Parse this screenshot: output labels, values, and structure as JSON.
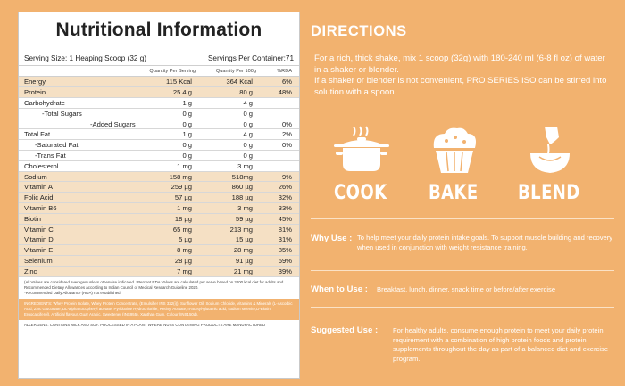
{
  "nutrition": {
    "title": "Nutritional Information",
    "serving_size": "Serving Size: 1 Heaping Scoop (32 g)",
    "servings_per_container": "Servings Per Container:71",
    "col_per_serving": "Quantity Per Serving",
    "col_per_100g": "Quantity Per 100g",
    "col_rda": "%RDA",
    "rows": [
      {
        "name": "Energy",
        "serving": "115 Kcal",
        "per100": "364 Kcal",
        "rda": "6%",
        "style": "shaded"
      },
      {
        "name": "Protein",
        "serving": "25.4 g",
        "per100": "80 g",
        "rda": "48%",
        "style": "shaded"
      },
      {
        "name": "Carbohydrate",
        "serving": "1 g",
        "per100": "4 g",
        "rda": "",
        "style": "plain"
      },
      {
        "name": "-Total Sugars",
        "serving": "0 g",
        "per100": "0 g",
        "rda": "",
        "style": "ind1"
      },
      {
        "name": "-Added Sugars",
        "serving": "0 g",
        "per100": "0 g",
        "rda": "0%",
        "style": "ind2"
      },
      {
        "name": "Total Fat",
        "serving": "1 g",
        "per100": "4 g",
        "rda": "2%",
        "style": "plain"
      },
      {
        "name": "-Saturated Fat",
        "serving": "0 g",
        "per100": "0 g",
        "rda": "0%",
        "style": "ind1b"
      },
      {
        "name": "-Trans Fat",
        "serving": "0 g",
        "per100": "0 g",
        "rda": "",
        "style": "ind1b"
      },
      {
        "name": "Cholesterol",
        "serving": "1 mg",
        "per100": "3 mg",
        "rda": "",
        "style": "plain"
      },
      {
        "name": "Sodium",
        "serving": "158 mg",
        "per100": "518mg",
        "rda": "9%",
        "style": "shaded"
      },
      {
        "name": "Vitamin A",
        "serving": "259 µg",
        "per100": "860 µg",
        "rda": "26%",
        "style": "shaded"
      },
      {
        "name": "Folic Acid",
        "serving": "57 µg",
        "per100": "188 µg",
        "rda": "32%",
        "style": "shaded"
      },
      {
        "name": "Vitamin B6",
        "serving": "1 mg",
        "per100": "3 mg",
        "rda": "33%",
        "style": "shaded"
      },
      {
        "name": "Biotin",
        "serving": "18 µg",
        "per100": "59 µg",
        "rda": "45%",
        "style": "shaded"
      },
      {
        "name": "Vitamin C",
        "serving": "65 mg",
        "per100": "213 mg",
        "rda": "81%",
        "style": "shaded"
      },
      {
        "name": "Vitamin D",
        "serving": "5 µg",
        "per100": "15 µg",
        "rda": "31%",
        "style": "shaded"
      },
      {
        "name": "Vitamin E",
        "serving": "8 mg",
        "per100": "28 mg",
        "rda": "85%",
        "style": "shaded"
      },
      {
        "name": "Selenium",
        "serving": "28 µg",
        "per100": "91 µg",
        "rda": "69%",
        "style": "shaded"
      },
      {
        "name": "Zinc",
        "serving": "7 mg",
        "per100": "21 mg",
        "rda": "39%",
        "style": "shaded"
      }
    ],
    "footnote_1": "(All Values are considered averages unless otherwise indicated. *Percent RDA Values are calculated per serve based on 2000 kcal diet for adults and Recommended Dietary Allowances according to Indian Council of Medical Research Guideline 2020.",
    "footnote_2": "*Recommended Daily Allowance (RDA) not established.",
    "ingredients": "INGREDIENTS: Whey Protein Isolate, Whey Protein Concentrate, (Emulsifier INS 322(i)), Sunflower Oil, Sodium Chloride, Vitamins & Minerals (L-Ascorbic Acid, Zinc Gluconate, DL-alpha-tocopheryl acetate, Pyridoxine Hydrochloride, Retinyl Acetate, n-acetyl-glutamic acid, sodium selenite,D-Biotin, Ergocalciferol), Artificial flavour, Guar Arabic, Sweetener (INS955), Xanthan Gum, Colour (INS150d).",
    "allergens": "ALLERGENS: CONTAINS MILK AND SOY. PROCESSED IN A PLANT WHERE NUTS CONTAINING PRODUCTS ARE MANUFACTURED"
  },
  "directions": {
    "title": "DIRECTIONS",
    "text_1": "For a rich, thick shake, mix 1 scoop (32g) with 180-240 ml (6-8 fl oz) of water in a shaker or blender.",
    "text_2": "If a shaker or blender is not convenient, PRO SERIES ISO can be stirred into solution with a spoon",
    "icons": [
      {
        "icon": "cooking-pot-icon",
        "label": "COOK"
      },
      {
        "icon": "muffin-icon",
        "label": "BAKE"
      },
      {
        "icon": "blender-icon",
        "label": "BLEND"
      }
    ],
    "why_use_label": "Why Use :",
    "why_use_text": "To help meet your daily protein intake goals. To support muscle building and recovery when used in conjunction with weight resistance training.",
    "when_use_label": "When to Use :",
    "when_use_text": "Breakfast, lunch, dinner, snack time or before/after exercise",
    "suggested_label": "Suggested Use :",
    "suggested_text": "For healthy adults, consume enough protein to meet your daily protein requirement with a combination of high protein foods and protein supplements throughout the day as part of a balanced diet and exercise program."
  },
  "colors": {
    "background": "#f2b26f",
    "table_shade": "#f5e0c4",
    "panel": "#ffffff"
  }
}
